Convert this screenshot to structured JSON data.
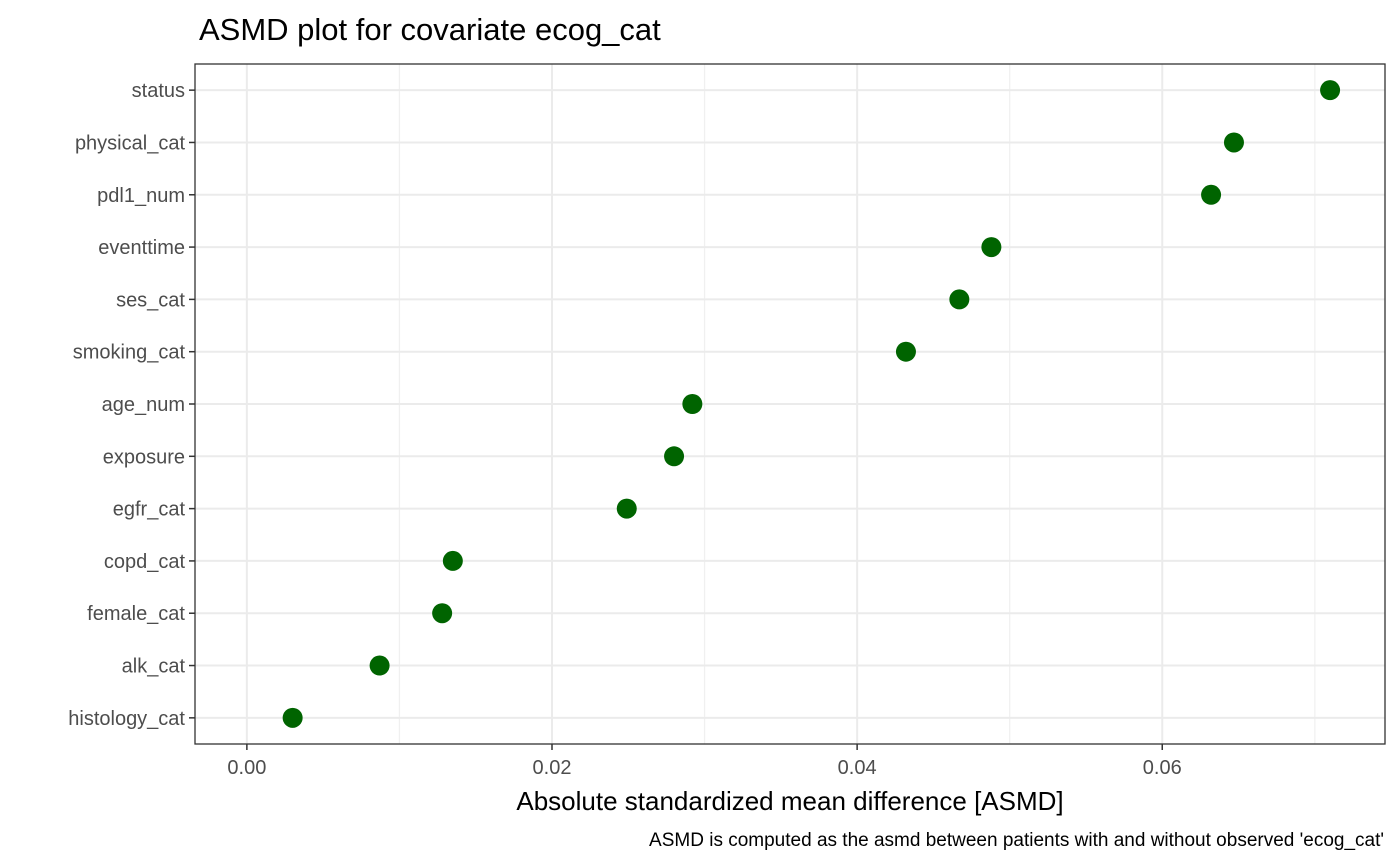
{
  "chart_data": {
    "type": "scatter",
    "title": "ASMD plot for covariate ecog_cat",
    "xlabel": "Absolute standardized mean difference [ASMD]",
    "ylabel": "",
    "caption": "ASMD is computed as the asmd between patients with and without observed 'ecog_cat'",
    "xlim": [
      -0.0034,
      0.0746
    ],
    "x_ticks": [
      0,
      0.02,
      0.04,
      0.06
    ],
    "x_tick_labels": [
      "0.00",
      "0.02",
      "0.04",
      "0.06"
    ],
    "categories": [
      "status",
      "physical_cat",
      "pdl1_num",
      "eventtime",
      "ses_cat",
      "smoking_cat",
      "age_num",
      "exposure",
      "egfr_cat",
      "copd_cat",
      "female_cat",
      "alk_cat",
      "histology_cat"
    ],
    "values": [
      0.071,
      0.0647,
      0.0632,
      0.0488,
      0.0467,
      0.0432,
      0.0292,
      0.028,
      0.0249,
      0.0135,
      0.0128,
      0.0087,
      0.003
    ],
    "point_color": "#006400",
    "grid": true,
    "legend": "none"
  }
}
